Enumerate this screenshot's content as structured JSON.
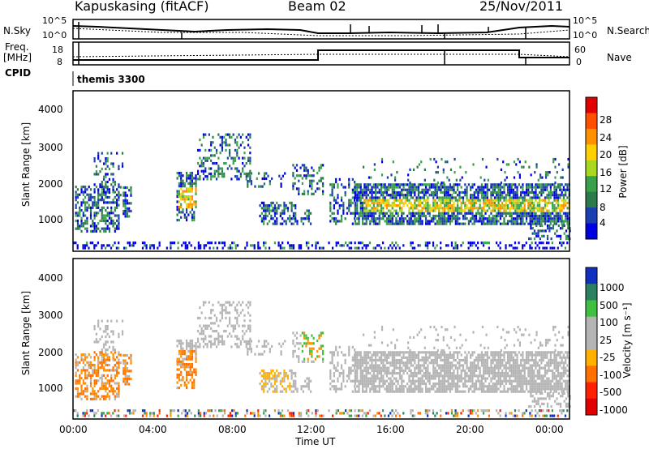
{
  "header": {
    "station": "Kapuskasing (fitACF)",
    "beam": "Beam 02",
    "date": "25/Nov/2011"
  },
  "top_panels": {
    "noise_left_label": "N.Sky",
    "noise_left_ticks": [
      "10^5",
      "10^0"
    ],
    "noise_right_ticks": [
      "10^5",
      "10^0"
    ],
    "noise_right_label": "N.Search",
    "freq_label_1": "Freq.",
    "freq_label_2": "[MHz]",
    "freq_left_ticks": [
      "18",
      "8"
    ],
    "freq_right_ticks": [
      "60",
      "0"
    ],
    "nave_label": "Nave",
    "cpid_label": "CPID",
    "cpid_value": "themis 3300"
  },
  "colors": {
    "power_scale": [
      "#0000e0",
      "#1a3fb0",
      "#2d7a4a",
      "#3aa04a",
      "#a8d820",
      "#ffd000",
      "#ff9000",
      "#ff5000",
      "#e00000"
    ],
    "velocity_scale": [
      "#1030c0",
      "#2a8060",
      "#40c040",
      "#b4b4b4",
      "#b4b4b4",
      "#ffb000",
      "#ff7000",
      "#ff2000",
      "#e00000"
    ]
  },
  "chart_data": [
    {
      "type": "heatmap",
      "name_id": "power",
      "ylabel": "Slant Range [km]",
      "yticks": [
        "1000",
        "2000",
        "3000",
        "4000"
      ],
      "ylim": [
        200,
        4500
      ],
      "xlim": [
        0,
        24
      ],
      "colorbar_label": "Power [dB]",
      "colorbar_ticks": [
        "4",
        "8",
        "12",
        "16",
        "20",
        "24",
        "28"
      ],
      "colorbar_range": [
        0,
        32
      ]
    },
    {
      "type": "heatmap",
      "name_id": "velocity",
      "ylabel": "Slant Range [km]",
      "yticks": [
        "1000",
        "2000",
        "3000",
        "4000"
      ],
      "ylim": [
        200,
        4500
      ],
      "xlim": [
        0,
        24
      ],
      "colorbar_label": "Velocity [m s⁻¹]",
      "colorbar_ticks": [
        "1000",
        "500",
        "100",
        "25",
        "-25",
        "-100",
        "-500",
        "-1000"
      ]
    }
  ],
  "xaxis": {
    "ticks": [
      "00:00",
      "04:00",
      "08:00",
      "12:00",
      "16:00",
      "20:00",
      "00:00"
    ],
    "label": "Time UT"
  }
}
